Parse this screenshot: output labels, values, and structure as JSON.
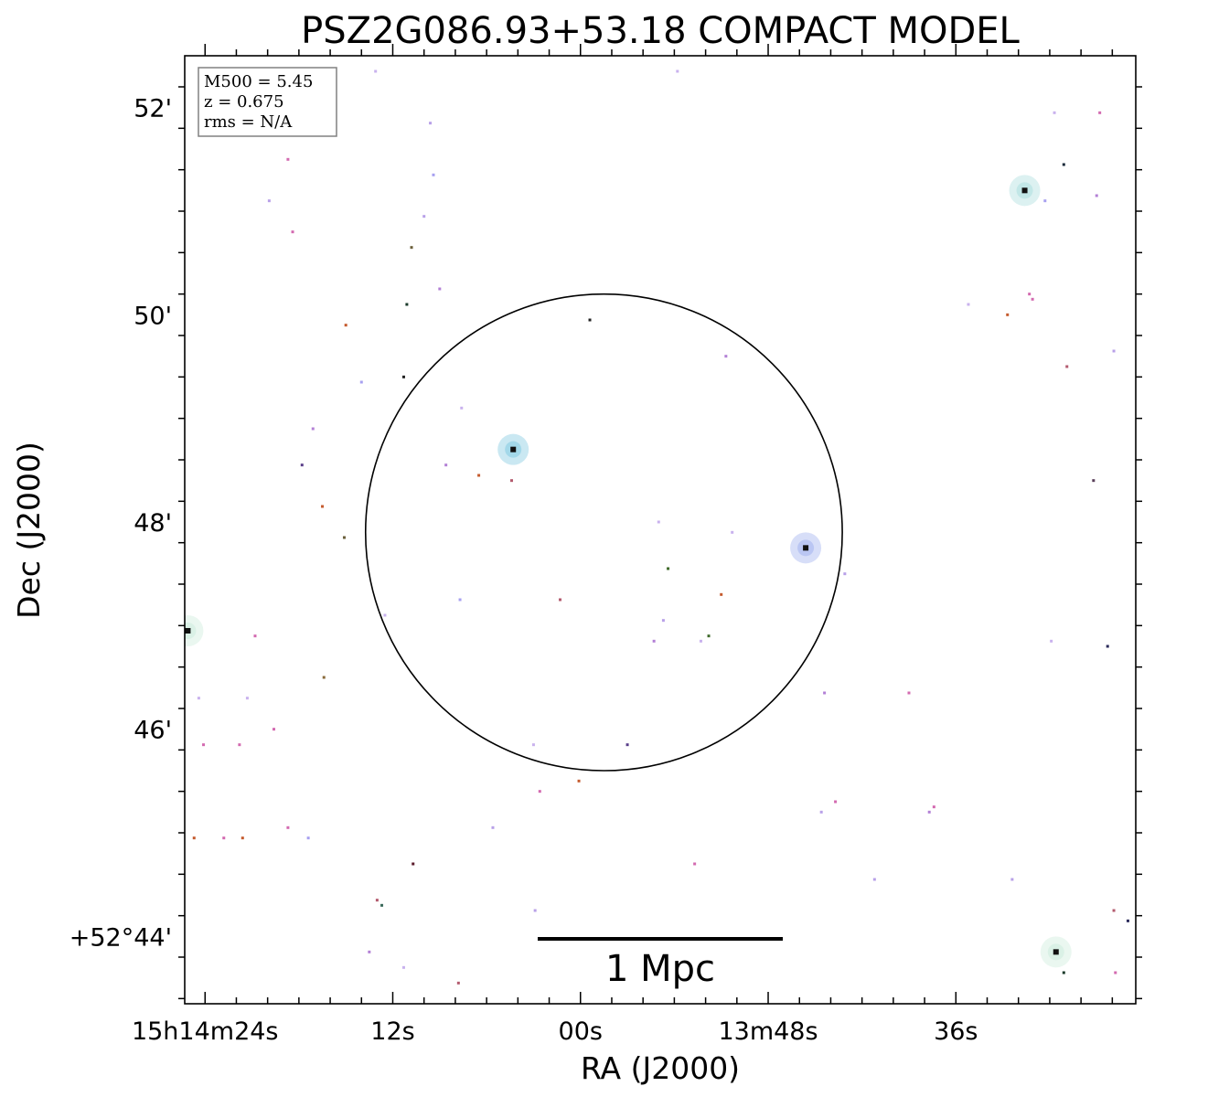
{
  "chart_data": {
    "type": "sky-image",
    "title": "PSZ2G086.93+53.18 COMPACT MODEL",
    "xlabel": "RA (J2000)",
    "ylabel": "Dec (J2000)",
    "grid": false,
    "x_ticks": [
      {
        "label": "15h14m24s",
        "ra_sec": 24
      },
      {
        "label": "12s",
        "ra_sec": 12
      },
      {
        "label": "00s",
        "ra_sec": 0
      },
      {
        "label": "13m48s",
        "ra_sec": -12
      },
      {
        "label": "36s",
        "ra_sec": -24
      }
    ],
    "y_ticks": [
      {
        "label": "52'",
        "dec_arcmin": 52
      },
      {
        "label": "50'",
        "dec_arcmin": 50
      },
      {
        "label": "48'",
        "dec_arcmin": 48
      },
      {
        "label": "46'",
        "dec_arcmin": 46
      },
      {
        "label": "+52°44'",
        "dec_arcmin": 44
      }
    ],
    "xlim_ra_sec": [
      25.3,
      -35.5
    ],
    "ylim_dec_arcmin": [
      43.35,
      52.5
    ],
    "annotation": {
      "placement": "top-left",
      "lines": [
        "M500 = 5.45",
        "z = 0.675",
        "rms = N/A"
      ]
    },
    "scale_bar": {
      "label": "1 Mpc"
    },
    "aperture_circle": {
      "center_ra_sec": -1.5,
      "center_dec_arcmin": 47.9,
      "radius_arcmin": 2.3
    },
    "bright_sources": [
      {
        "ra_sec": 4.3,
        "dec_arcmin": 48.7,
        "color": "#9fd6e8"
      },
      {
        "ra_sec": -14.4,
        "dec_arcmin": 47.75,
        "color": "#b7c3f2"
      },
      {
        "ra_sec": -28.4,
        "dec_arcmin": 51.2,
        "color": "#bfe6e6"
      },
      {
        "ra_sec": 25.1,
        "dec_arcmin": 46.95,
        "color": "#d8f0e4"
      },
      {
        "ra_sec": -30.4,
        "dec_arcmin": 43.85,
        "color": "#d8f0e4"
      }
    ],
    "faint_sources": [
      {
        "ra_sec": 13.1,
        "dec_arcmin": 52.35,
        "color": "#c9b2ee"
      },
      {
        "ra_sec": -6.2,
        "dec_arcmin": 52.35,
        "color": "#c9b2ee"
      },
      {
        "ra_sec": 9.6,
        "dec_arcmin": 51.85,
        "color": "#b8a0e8"
      },
      {
        "ra_sec": 18.7,
        "dec_arcmin": 51.5,
        "color": "#d36ab0"
      },
      {
        "ra_sec": 9.4,
        "dec_arcmin": 51.35,
        "color": "#a7a0f0"
      },
      {
        "ra_sec": 19.9,
        "dec_arcmin": 51.1,
        "color": "#b8a0e8"
      },
      {
        "ra_sec": 18.4,
        "dec_arcmin": 50.8,
        "color": "#d36ab0"
      },
      {
        "ra_sec": 10.0,
        "dec_arcmin": 50.95,
        "color": "#b8a0e8"
      },
      {
        "ra_sec": 10.8,
        "dec_arcmin": 50.65,
        "color": "#6b5f3a"
      },
      {
        "ra_sec": 9.0,
        "dec_arcmin": 50.25,
        "color": "#b380d6"
      },
      {
        "ra_sec": 11.1,
        "dec_arcmin": 50.1,
        "color": "#1a3a2a"
      },
      {
        "ra_sec": 15.0,
        "dec_arcmin": 49.9,
        "color": "#c55b2e"
      },
      {
        "ra_sec": 14.0,
        "dec_arcmin": 49.35,
        "color": "#a7a0f0"
      },
      {
        "ra_sec": 11.3,
        "dec_arcmin": 49.4,
        "color": "#222222"
      },
      {
        "ra_sec": 17.1,
        "dec_arcmin": 48.9,
        "color": "#b380d6"
      },
      {
        "ra_sec": 17.8,
        "dec_arcmin": 48.55,
        "color": "#5a3f8a"
      },
      {
        "ra_sec": 16.5,
        "dec_arcmin": 48.15,
        "color": "#c55b2e"
      },
      {
        "ra_sec": 15.1,
        "dec_arcmin": 47.85,
        "color": "#6b5f3a"
      },
      {
        "ra_sec": 8.6,
        "dec_arcmin": 48.55,
        "color": "#b380d6"
      },
      {
        "ra_sec": 6.5,
        "dec_arcmin": 48.45,
        "color": "#c55b2e"
      },
      {
        "ra_sec": 7.6,
        "dec_arcmin": 49.1,
        "color": "#c9b2ee"
      },
      {
        "ra_sec": 4.4,
        "dec_arcmin": 48.4,
        "color": "#b35a6e"
      },
      {
        "ra_sec": 12.5,
        "dec_arcmin": 47.1,
        "color": "#c9b2ee"
      },
      {
        "ra_sec": 7.7,
        "dec_arcmin": 47.25,
        "color": "#a7a0f0"
      },
      {
        "ra_sec": 1.3,
        "dec_arcmin": 47.25,
        "color": "#b35a6e"
      },
      {
        "ra_sec": -0.6,
        "dec_arcmin": 49.95,
        "color": "#222222"
      },
      {
        "ra_sec": -9.3,
        "dec_arcmin": 49.6,
        "color": "#b380d6"
      },
      {
        "ra_sec": -5.0,
        "dec_arcmin": 48.0,
        "color": "#c9b2ee"
      },
      {
        "ra_sec": -5.6,
        "dec_arcmin": 47.55,
        "color": "#3f6a2a"
      },
      {
        "ra_sec": -9.7,
        "dec_arcmin": 47.9,
        "color": "#c9b2ee"
      },
      {
        "ra_sec": -9.0,
        "dec_arcmin": 47.3,
        "color": "#c55b2e"
      },
      {
        "ra_sec": -5.3,
        "dec_arcmin": 47.05,
        "color": "#b8a0e8"
      },
      {
        "ra_sec": -4.7,
        "dec_arcmin": 46.85,
        "color": "#b380d6"
      },
      {
        "ra_sec": -8.2,
        "dec_arcmin": 46.9,
        "color": "#3f6a2a"
      },
      {
        "ra_sec": -7.7,
        "dec_arcmin": 46.85,
        "color": "#c9b2ee"
      },
      {
        "ra_sec": -15.6,
        "dec_arcmin": 46.35,
        "color": "#b380d6"
      },
      {
        "ra_sec": -16.9,
        "dec_arcmin": 47.5,
        "color": "#b8a0e8"
      },
      {
        "ra_sec": -3.0,
        "dec_arcmin": 45.85,
        "color": "#5a3f8a"
      },
      {
        "ra_sec": 3.0,
        "dec_arcmin": 45.85,
        "color": "#c9b2ee"
      },
      {
        "ra_sec": 2.6,
        "dec_arcmin": 45.4,
        "color": "#d36ab0"
      },
      {
        "ra_sec": 0.1,
        "dec_arcmin": 45.5,
        "color": "#c55b2e"
      },
      {
        "ra_sec": 21.3,
        "dec_arcmin": 46.3,
        "color": "#c9b2ee"
      },
      {
        "ra_sec": 21.8,
        "dec_arcmin": 45.85,
        "color": "#d36ab0"
      },
      {
        "ra_sec": 19.6,
        "dec_arcmin": 46.0,
        "color": "#d36ab0"
      },
      {
        "ra_sec": 16.4,
        "dec_arcmin": 46.5,
        "color": "#8a6a3a"
      },
      {
        "ra_sec": 21.6,
        "dec_arcmin": 44.95,
        "color": "#c55b2e"
      },
      {
        "ra_sec": 18.7,
        "dec_arcmin": 45.05,
        "color": "#d36ab0"
      },
      {
        "ra_sec": 17.4,
        "dec_arcmin": 44.95,
        "color": "#a7a0f0"
      },
      {
        "ra_sec": 5.6,
        "dec_arcmin": 45.05,
        "color": "#b8a0e8"
      },
      {
        "ra_sec": 10.7,
        "dec_arcmin": 44.7,
        "color": "#5a1a2a"
      },
      {
        "ra_sec": 13.0,
        "dec_arcmin": 44.35,
        "color": "#b35a6e"
      },
      {
        "ra_sec": 12.7,
        "dec_arcmin": 44.3,
        "color": "#3a6a5a"
      },
      {
        "ra_sec": 2.9,
        "dec_arcmin": 44.25,
        "color": "#b8a0e8"
      },
      {
        "ra_sec": 13.5,
        "dec_arcmin": 43.85,
        "color": "#b380d6"
      },
      {
        "ra_sec": 11.3,
        "dec_arcmin": 43.7,
        "color": "#c9b2ee"
      },
      {
        "ra_sec": 7.8,
        "dec_arcmin": 43.55,
        "color": "#b35a6e"
      },
      {
        "ra_sec": -7.3,
        "dec_arcmin": 44.7,
        "color": "#d36ab0"
      },
      {
        "ra_sec": -16.3,
        "dec_arcmin": 45.3,
        "color": "#d36ab0"
      },
      {
        "ra_sec": -15.4,
        "dec_arcmin": 45.2,
        "color": "#b8a0e8"
      },
      {
        "ra_sec": -18.8,
        "dec_arcmin": 44.55,
        "color": "#b8a0e8"
      },
      {
        "ra_sec": -28.7,
        "dec_arcmin": 50.2,
        "color": "#d36ab0"
      },
      {
        "ra_sec": -27.3,
        "dec_arcmin": 50.0,
        "color": "#c55b2e"
      },
      {
        "ra_sec": -24.8,
        "dec_arcmin": 50.1,
        "color": "#c9b2ee"
      },
      {
        "ra_sec": -30.3,
        "dec_arcmin": 51.95,
        "color": "#c9b2ee"
      },
      {
        "ra_sec": -30.9,
        "dec_arcmin": 51.45,
        "color": "#1a2a3a"
      },
      {
        "ra_sec": -33.2,
        "dec_arcmin": 51.95,
        "color": "#d36ab0"
      },
      {
        "ra_sec": -33.0,
        "dec_arcmin": 51.15,
        "color": "#b380d6"
      },
      {
        "ra_sec": -29.7,
        "dec_arcmin": 51.1,
        "color": "#a7a0f0"
      },
      {
        "ra_sec": -28.9,
        "dec_arcmin": 50.15,
        "color": "#d36ab0"
      },
      {
        "ra_sec": -34.1,
        "dec_arcmin": 49.65,
        "color": "#b8a0e8"
      },
      {
        "ra_sec": -31.1,
        "dec_arcmin": 49.5,
        "color": "#b35a6e"
      },
      {
        "ra_sec": -32.8,
        "dec_arcmin": 48.4,
        "color": "#5a3f5a"
      },
      {
        "ra_sec": -33.7,
        "dec_arcmin": 46.8,
        "color": "#2a2a5a"
      },
      {
        "ra_sec": -30.1,
        "dec_arcmin": 46.85,
        "color": "#c9b2ee"
      },
      {
        "ra_sec": -27.6,
        "dec_arcmin": 44.55,
        "color": "#b8a0e8"
      },
      {
        "ra_sec": -30.9,
        "dec_arcmin": 43.65,
        "color": "#1a3a2a"
      },
      {
        "ra_sec": -34.1,
        "dec_arcmin": 44.25,
        "color": "#b35a6e"
      },
      {
        "ra_sec": -35.0,
        "dec_arcmin": 44.15,
        "color": "#2a2a5a"
      },
      {
        "ra_sec": -34.2,
        "dec_arcmin": 43.65,
        "color": "#d36ab0"
      },
      {
        "ra_sec": 22.8,
        "dec_arcmin": 44.95,
        "color": "#d36ab0"
      },
      {
        "ra_sec": 24.7,
        "dec_arcmin": 44.95,
        "color": "#c55b2e"
      },
      {
        "ra_sec": 20.8,
        "dec_arcmin": 46.9,
        "color": "#d36ab0"
      },
      {
        "ra_sec": 24.4,
        "dec_arcmin": 46.3,
        "color": "#c9b2ee"
      },
      {
        "ra_sec": 24.1,
        "dec_arcmin": 45.85,
        "color": "#d36ab0"
      },
      {
        "ra_sec": -22.3,
        "dec_arcmin": 45.2,
        "color": "#b380d6"
      },
      {
        "ra_sec": -22.6,
        "dec_arcmin": 45.25,
        "color": "#d36ab0"
      },
      {
        "ra_sec": -21.0,
        "dec_arcmin": 46.35,
        "color": "#d36ab0"
      }
    ]
  }
}
